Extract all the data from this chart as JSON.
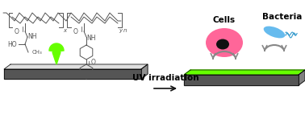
{
  "bg_color": "#ffffff",
  "polymer_color": "#555555",
  "drop_color": "#66ff00",
  "substrate_top_color": "#e0e0e0",
  "substrate_side_color": "#555555",
  "coating_color": "#66ff00",
  "cell_color": "#ff6699",
  "cell_nucleus_color": "#111111",
  "bacteria_body_color": "#66bbee",
  "bacteria_flagella_color": "#3399cc",
  "repel_arrow_color": "#888888",
  "uv_arrow_color": "#111111",
  "label_color": "#111111",
  "uv_text": "UV irradiation",
  "cells_label": "Cells",
  "bacteria_label": "Bacteria",
  "uv_fontsize": 7.5,
  "label_fontsize": 7.5,
  "poly_lw": 0.7,
  "figsize": [
    3.78,
    1.48
  ],
  "dpi": 100
}
